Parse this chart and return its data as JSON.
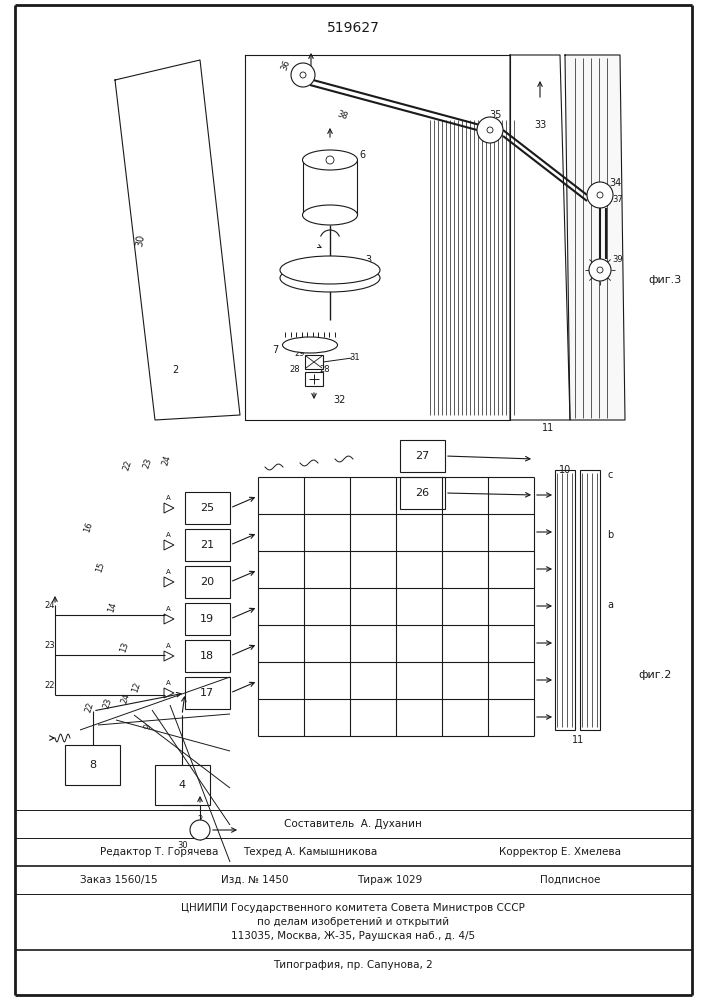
{
  "title": "519627",
  "bg_color": "#ffffff",
  "line_color": "#1a1a1a",
  "fig3_label": "фиг.3",
  "fig2_label": "фиг.2",
  "footer": {
    "line1": "Составитель  А. Духанин",
    "line2_left": "Редактор Т. Горячева",
    "line2_mid": "Техред А. Камышникова",
    "line2_right": "Корректор Е. Хмелева",
    "line3_1": "Заказ 1560/15",
    "line3_2": "Изд. № 1450",
    "line3_3": "Тираж 1029",
    "line3_4": "Подписное",
    "line4": "ЦНИИПИ Государственного комитета Совета Министров СССР",
    "line5": "по делам изобретений и открытий",
    "line6": "113035, Москва, Ж-35, Раушская наб., д. 4/5",
    "line7": "Типография, пр. Сапунова, 2"
  }
}
